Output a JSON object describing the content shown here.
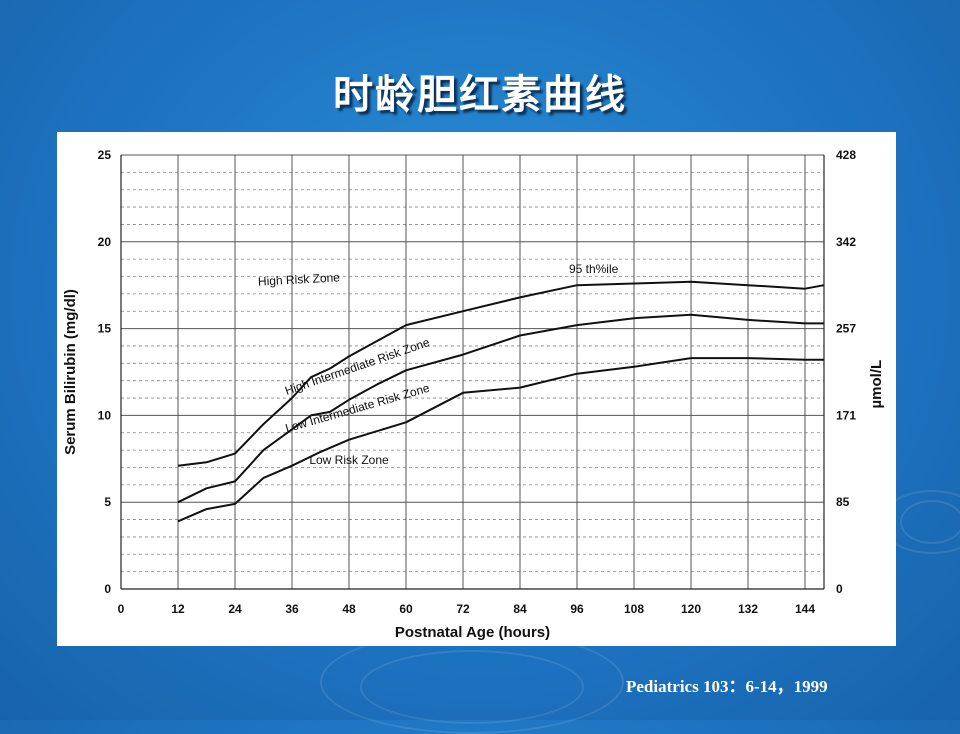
{
  "slide": {
    "title": "时龄胆红素曲线",
    "citation": "Pediatrics 103：6-14，1999"
  },
  "chart_data": {
    "type": "line",
    "title": "",
    "xlabel": "Postnatal Age (hours)",
    "ylabel": "Serum Bilirubin (mg/dl)",
    "y2label": "µmol/L",
    "xlim": [
      0,
      148
    ],
    "ylim": [
      0,
      25
    ],
    "x_ticks": [
      0,
      12,
      24,
      36,
      48,
      60,
      72,
      84,
      96,
      108,
      120,
      132,
      144
    ],
    "y_ticks": [
      0,
      5,
      10,
      15,
      20,
      25
    ],
    "y2_ticks": [
      {
        "at": 0,
        "label": "0"
      },
      {
        "at": 5,
        "label": "85"
      },
      {
        "at": 10,
        "label": "171"
      },
      {
        "at": 15,
        "label": "257"
      },
      {
        "at": 20,
        "label": "342"
      },
      {
        "at": 25,
        "label": "428"
      }
    ],
    "grid": true,
    "series": [
      {
        "name": "95 th%ile",
        "x": [
          12,
          18,
          24,
          30,
          36,
          40,
          44,
          48,
          54,
          60,
          72,
          84,
          96,
          108,
          120,
          132,
          144,
          148
        ],
        "values": [
          7.1,
          7.3,
          7.8,
          9.5,
          11.0,
          12.2,
          12.7,
          13.4,
          14.3,
          15.2,
          16.0,
          16.8,
          17.5,
          17.6,
          17.7,
          17.5,
          17.3,
          17.5
        ]
      },
      {
        "name": "",
        "x": [
          12,
          18,
          24,
          30,
          36,
          40,
          44,
          48,
          54,
          60,
          72,
          84,
          96,
          108,
          120,
          132,
          144,
          148
        ],
        "values": [
          5.0,
          5.8,
          6.2,
          8.0,
          9.2,
          10.0,
          10.2,
          10.9,
          11.8,
          12.6,
          13.5,
          14.6,
          15.2,
          15.6,
          15.8,
          15.5,
          15.3,
          15.3
        ]
      },
      {
        "name": "",
        "x": [
          12,
          18,
          24,
          30,
          36,
          42,
          48,
          60,
          72,
          84,
          96,
          108,
          120,
          132,
          144,
          148
        ],
        "values": [
          3.9,
          4.6,
          4.9,
          6.4,
          7.1,
          7.9,
          8.6,
          9.6,
          11.3,
          11.6,
          12.4,
          12.8,
          13.3,
          13.3,
          13.2,
          13.2
        ]
      }
    ],
    "zone_labels": [
      {
        "text": "High Risk Zone",
        "x": 37.5,
        "y": 17.6,
        "angle": -3
      },
      {
        "text": "High Intermediate Risk Zone",
        "x": 50,
        "y": 12.6,
        "angle": -19
      },
      {
        "text": "Low Intermediate Risk Zone",
        "x": 50,
        "y": 10.2,
        "angle": -16
      },
      {
        "text": "Low Risk Zone",
        "x": 48,
        "y": 7.2,
        "angle": 0
      }
    ],
    "percentile_label": {
      "text": "95 th%ile",
      "x": 99.5,
      "y": 18.2
    }
  }
}
